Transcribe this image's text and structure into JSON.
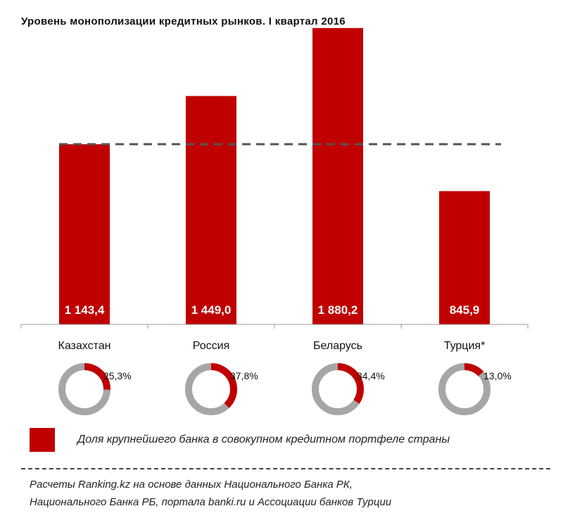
{
  "title": "Уровень монополизации кредитных рынков. I квартал 2016",
  "colors": {
    "bar": "#C00000",
    "ring": "#A6A6A6",
    "reference_line": "#555555"
  },
  "chart_data": [
    {
      "type": "bar",
      "categories": [
        "Казахстан",
        "Россия",
        "Беларусь",
        "Турция*"
      ],
      "values": [
        1143.4,
        1449.0,
        1880.2,
        845.9
      ],
      "value_labels": [
        "1 143,4",
        "1 449,0",
        "1 880,2",
        "845,9"
      ],
      "ylim": [
        0,
        2000
      ],
      "reference_line": {
        "value": 1143.4,
        "style": "dashed"
      },
      "grid": false
    },
    {
      "type": "pie",
      "style": "donut",
      "categories": [
        "Казахстан",
        "Россия",
        "Беларусь",
        "Турция*"
      ],
      "values": [
        25.3,
        37.8,
        34.4,
        13.0
      ],
      "value_labels": [
        "25,3%",
        "37,8%",
        "34,4%",
        "13,0%"
      ],
      "unit": "%"
    }
  ],
  "legend": {
    "label": "Доля крупнейшего банка в совокупном кредитном портфеле страны"
  },
  "source": {
    "line1": "Расчеты Ranking.kz на основе данных Национального Банка РК,",
    "line2": "Национального Банка РБ, портала banki.ru и Ассоциации банков Турции"
  }
}
